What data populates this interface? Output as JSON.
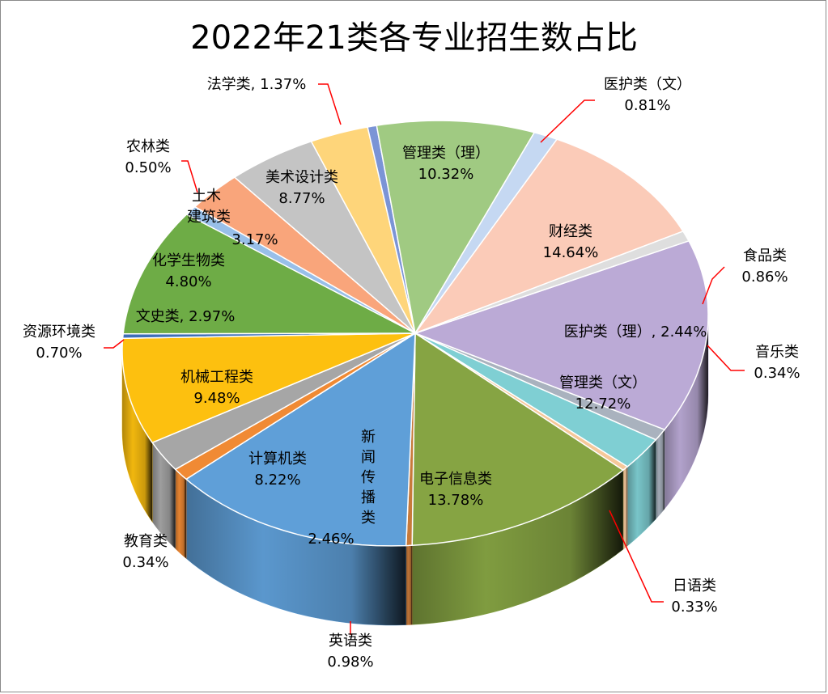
{
  "chart_data": {
    "type": "pie",
    "title": "2022年21类各专业招生数占比",
    "slices": [
      {
        "label": "财经类",
        "value": 14.64,
        "percent": "14.64%",
        "color": "#bbaad6"
      },
      {
        "label": "食品类",
        "value": 0.86,
        "percent": "0.86%",
        "color": "#a9b2be"
      },
      {
        "label": "医护类（理）",
        "value": 2.44,
        "percent": "2.44%",
        "color": "#7fcfd3"
      },
      {
        "label": "音乐类",
        "value": 0.34,
        "percent": "0.34%",
        "color": "#f5c89a"
      },
      {
        "label": "管理类（文）",
        "value": 12.72,
        "percent": "12.72%",
        "color": "#86a443"
      },
      {
        "label": "日语类",
        "value": 0.33,
        "percent": "0.33%",
        "color": "#c77a3a"
      },
      {
        "label": "电子信息类",
        "value": 13.78,
        "percent": "13.78%",
        "color": "#5f9fd8"
      },
      {
        "label": "英语类",
        "value": 0.98,
        "percent": "0.98%",
        "color": "#f08a34"
      },
      {
        "label": "新闻传播类",
        "value": 2.46,
        "percent": "2.46%",
        "color": "#a6a6a6"
      },
      {
        "label": "计算机类",
        "value": 8.22,
        "percent": "8.22%",
        "color": "#fdc00f"
      },
      {
        "label": "教育类",
        "value": 0.34,
        "percent": "0.34%",
        "color": "#3d6eb8"
      },
      {
        "label": "机械工程类",
        "value": 9.48,
        "percent": "9.48%",
        "color": "#6eac46"
      },
      {
        "label": "资源环境类",
        "value": 0.7,
        "percent": "0.70%",
        "color": "#98bfe9"
      },
      {
        "label": "文史类",
        "value": 2.97,
        "percent": "2.97%",
        "color": "#f9a57b"
      },
      {
        "label": "化学生物类",
        "value": 4.8,
        "percent": "4.80%",
        "color": "#c4c4c4"
      },
      {
        "label": "土木建筑类",
        "value": 3.17,
        "percent": "3.17%",
        "color": "#fed57a"
      },
      {
        "label": "农林类",
        "value": 0.5,
        "percent": "0.50%",
        "color": "#7b94d6"
      },
      {
        "label": "美术设计类",
        "value": 8.77,
        "percent": "8.77%",
        "color": "#a0ca82"
      },
      {
        "label": "法学类",
        "value": 1.37,
        "percent": "1.37%",
        "color": "#c5d8f2"
      },
      {
        "label": "管理类（理）",
        "value": 10.32,
        "percent": "10.32%",
        "color": "#fbcbb8"
      },
      {
        "label": "医护类（文）",
        "value": 0.81,
        "percent": "0.81%",
        "color": "#dedede"
      }
    ],
    "legend": "none"
  },
  "colors": {
    "leader_line": "#ff0000",
    "frame_border": "#8a8a8a",
    "slice_border": "#ffffff"
  }
}
